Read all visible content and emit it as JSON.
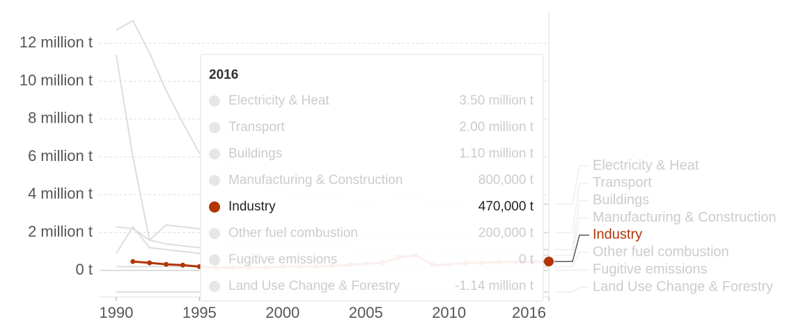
{
  "chart_data": {
    "type": "line",
    "x": [
      1990,
      1991,
      1992,
      1993,
      1994,
      1995,
      1996,
      1997,
      1998,
      1999,
      2000,
      2001,
      2002,
      2003,
      2004,
      2005,
      2006,
      2007,
      2008,
      2009,
      2010,
      2011,
      2012,
      2013,
      2014,
      2015,
      2016
    ],
    "xlim": [
      1989,
      2016
    ],
    "xticks": [
      1990,
      1995,
      2000,
      2005,
      2010,
      2016
    ],
    "ylim": [
      -1400000,
      13700000
    ],
    "yticks": [
      {
        "value": 0,
        "label": "0 t"
      },
      {
        "value": 2000000,
        "label": "2 million t"
      },
      {
        "value": 4000000,
        "label": "4 million t"
      },
      {
        "value": 6000000,
        "label": "6 million t"
      },
      {
        "value": 8000000,
        "label": "8 million t"
      },
      {
        "value": 10000000,
        "label": "10 million t"
      },
      {
        "value": 12000000,
        "label": "12 million t"
      }
    ],
    "grid": true,
    "series": [
      {
        "name": "Electricity & Heat",
        "color": "#dddddd",
        "faded": true,
        "values": [
          12700000,
          13200000,
          11500000,
          9500000,
          7800000,
          6200000,
          6000000,
          5500000,
          5000000,
          4500000,
          4200000,
          4000000,
          3900000,
          3800000,
          3700000,
          3600000,
          3700000,
          3800000,
          3900000,
          3500000,
          3600000,
          3700000,
          3600000,
          3500000,
          3400000,
          3500000,
          3500000
        ]
      },
      {
        "name": "Transport",
        "color": "#dddddd",
        "faded": true,
        "values": [
          11400000,
          6000000,
          1600000,
          1400000,
          1300000,
          1200000,
          1200000,
          1300000,
          1300000,
          1400000,
          1400000,
          1500000,
          1500000,
          1600000,
          1600000,
          1700000,
          1700000,
          1800000,
          1800000,
          1800000,
          1900000,
          1900000,
          1900000,
          2000000,
          2000000,
          2000000,
          2000000
        ]
      },
      {
        "name": "Buildings",
        "color": "#dddddd",
        "faded": true,
        "values": [
          2300000,
          2200000,
          1600000,
          2400000,
          2300000,
          2200000,
          1900000,
          1700000,
          1500000,
          1400000,
          1300000,
          1300000,
          1200000,
          1200000,
          1200000,
          1100000,
          1100000,
          1100000,
          1200000,
          1100000,
          1100000,
          1100000,
          1100000,
          1100000,
          1100000,
          1100000,
          1100000
        ]
      },
      {
        "name": "Manufacturing & Construction",
        "color": "#dddddd",
        "faded": true,
        "values": [
          900000,
          2300000,
          1200000,
          1100000,
          1000000,
          900000,
          800000,
          800000,
          700000,
          700000,
          700000,
          700000,
          700000,
          700000,
          700000,
          800000,
          800000,
          800000,
          800000,
          700000,
          800000,
          800000,
          800000,
          800000,
          800000,
          800000,
          800000
        ]
      },
      {
        "name": "Industry",
        "color": "#b13507",
        "faded": false,
        "values": [
          null,
          470000,
          400000,
          320000,
          280000,
          200000,
          150000,
          150000,
          150000,
          150000,
          200000,
          200000,
          200000,
          250000,
          300000,
          350000,
          400000,
          700000,
          800000,
          300000,
          300000,
          400000,
          400000,
          450000,
          450000,
          470000,
          470000
        ]
      },
      {
        "name": "Other fuel combustion",
        "color": "#dddddd",
        "faded": true,
        "values": [
          200000,
          200000,
          200000,
          200000,
          200000,
          200000,
          200000,
          200000,
          200000,
          200000,
          200000,
          200000,
          200000,
          200000,
          200000,
          200000,
          200000,
          200000,
          200000,
          200000,
          200000,
          200000,
          200000,
          200000,
          200000,
          200000,
          200000
        ]
      },
      {
        "name": "Fugitive emissions",
        "color": "#dddddd",
        "faded": true,
        "values": [
          0,
          0,
          0,
          0,
          0,
          0,
          0,
          0,
          0,
          0,
          0,
          0,
          0,
          0,
          0,
          0,
          0,
          0,
          0,
          0,
          0,
          0,
          0,
          0,
          0,
          0,
          0
        ]
      },
      {
        "name": "Land Use Change & Forestry",
        "color": "#dddddd",
        "faded": true,
        "values": [
          -1140000,
          -1140000,
          -1140000,
          -1140000,
          -1140000,
          -1140000,
          -1140000,
          -1140000,
          -1140000,
          -1140000,
          -1140000,
          -1140000,
          -1140000,
          -1140000,
          -1140000,
          -1140000,
          -1140000,
          -1140000,
          -1140000,
          -1140000,
          -1140000,
          -1140000,
          -1140000,
          -1140000,
          -1140000,
          -1140000,
          -1140000
        ]
      }
    ],
    "tooltip": {
      "title": "2016",
      "value_labels": [
        "3.50 million t",
        "2.00 million t",
        "1.10 million t",
        "800,000 t",
        "470,000 t",
        "200,000 t",
        "0 t",
        "-1.14 million t"
      ]
    }
  }
}
